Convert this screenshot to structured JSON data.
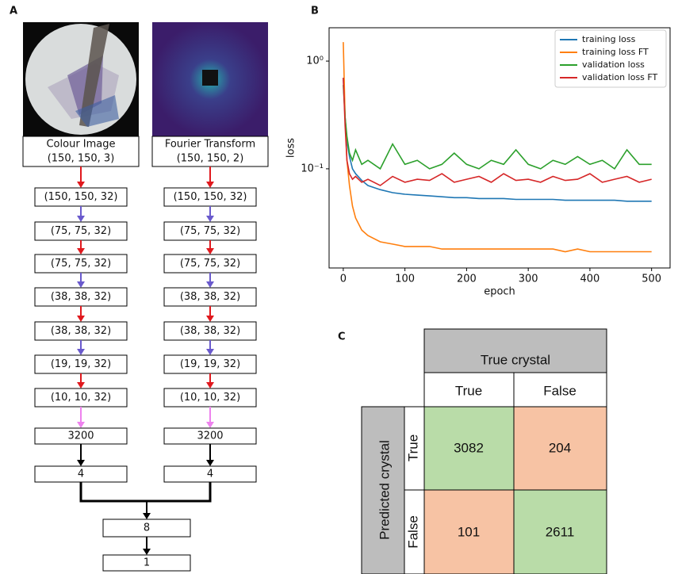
{
  "panel_a": {
    "label": "A",
    "branches": [
      {
        "title": "Colour Image",
        "shape": "(150, 150, 3)",
        "layers": [
          "(150, 150, 32)",
          "(75, 75, 32)",
          "(75, 75, 32)",
          "(38, 38, 32)",
          "(38, 38, 32)",
          "(19, 19, 32)",
          "(10, 10, 32)",
          "3200",
          "4"
        ]
      },
      {
        "title": "Fourier Transform",
        "shape": "(150, 150, 2)",
        "layers": [
          "(150, 150, 32)",
          "(75, 75, 32)",
          "(75, 75, 32)",
          "(38, 38, 32)",
          "(38, 38, 32)",
          "(19, 19, 32)",
          "(10, 10, 32)",
          "3200",
          "4"
        ]
      }
    ],
    "merged": [
      "8",
      "1"
    ]
  },
  "chart_data": {
    "type": "line",
    "panel_label": "B",
    "xlabel": "epoch",
    "ylabel": "loss",
    "yscale": "log",
    "legend": "upper right",
    "x": [
      0,
      3,
      6,
      10,
      15,
      20,
      30,
      40,
      60,
      80,
      100,
      120,
      140,
      160,
      180,
      200,
      220,
      240,
      260,
      280,
      300,
      320,
      340,
      360,
      380,
      400,
      420,
      440,
      460,
      480,
      500
    ],
    "series": [
      {
        "name": "training loss",
        "color": "#1f77b4",
        "values": [
          0.7,
          0.3,
          0.18,
          0.13,
          0.1,
          0.09,
          0.078,
          0.07,
          0.064,
          0.06,
          0.058,
          0.057,
          0.056,
          0.055,
          0.054,
          0.054,
          0.053,
          0.053,
          0.053,
          0.052,
          0.052,
          0.052,
          0.052,
          0.051,
          0.051,
          0.051,
          0.051,
          0.051,
          0.05,
          0.05,
          0.05
        ]
      },
      {
        "name": "training loss FT",
        "color": "#ff7f0e",
        "values": [
          1.5,
          0.3,
          0.12,
          0.07,
          0.045,
          0.035,
          0.027,
          0.024,
          0.021,
          0.02,
          0.019,
          0.019,
          0.019,
          0.018,
          0.018,
          0.018,
          0.018,
          0.018,
          0.018,
          0.018,
          0.018,
          0.018,
          0.018,
          0.017,
          0.018,
          0.017,
          0.017,
          0.017,
          0.017,
          0.017,
          0.017
        ]
      },
      {
        "name": "validation loss",
        "color": "#2ca02c",
        "values": [
          0.6,
          0.3,
          0.2,
          0.14,
          0.12,
          0.15,
          0.11,
          0.12,
          0.1,
          0.17,
          0.11,
          0.12,
          0.1,
          0.11,
          0.14,
          0.11,
          0.1,
          0.12,
          0.11,
          0.15,
          0.11,
          0.1,
          0.12,
          0.11,
          0.13,
          0.11,
          0.12,
          0.1,
          0.15,
          0.11,
          0.11
        ]
      },
      {
        "name": "validation loss FT",
        "color": "#d62728",
        "values": [
          0.7,
          0.25,
          0.12,
          0.09,
          0.08,
          0.085,
          0.075,
          0.08,
          0.07,
          0.085,
          0.075,
          0.08,
          0.078,
          0.09,
          0.075,
          0.08,
          0.085,
          0.075,
          0.09,
          0.078,
          0.08,
          0.075,
          0.085,
          0.078,
          0.08,
          0.09,
          0.075,
          0.08,
          0.085,
          0.075,
          0.08
        ]
      }
    ],
    "xlim": [
      -23,
      530
    ],
    "ylim": [
      0.012,
      2.04
    ],
    "xticks": [
      0,
      100,
      200,
      300,
      400,
      500
    ],
    "yticks": [
      {
        "value": 1,
        "label": "10⁰"
      },
      {
        "value": 0.1,
        "label": "10⁻¹"
      }
    ]
  },
  "panel_c": {
    "label": "C",
    "header": "True crystal",
    "columns": [
      "True",
      "False"
    ],
    "row_header": "Predicted crystal",
    "rows": [
      {
        "label": "True",
        "cells": [
          3082,
          204
        ]
      },
      {
        "label": "False",
        "cells": [
          101,
          2611
        ]
      }
    ]
  }
}
